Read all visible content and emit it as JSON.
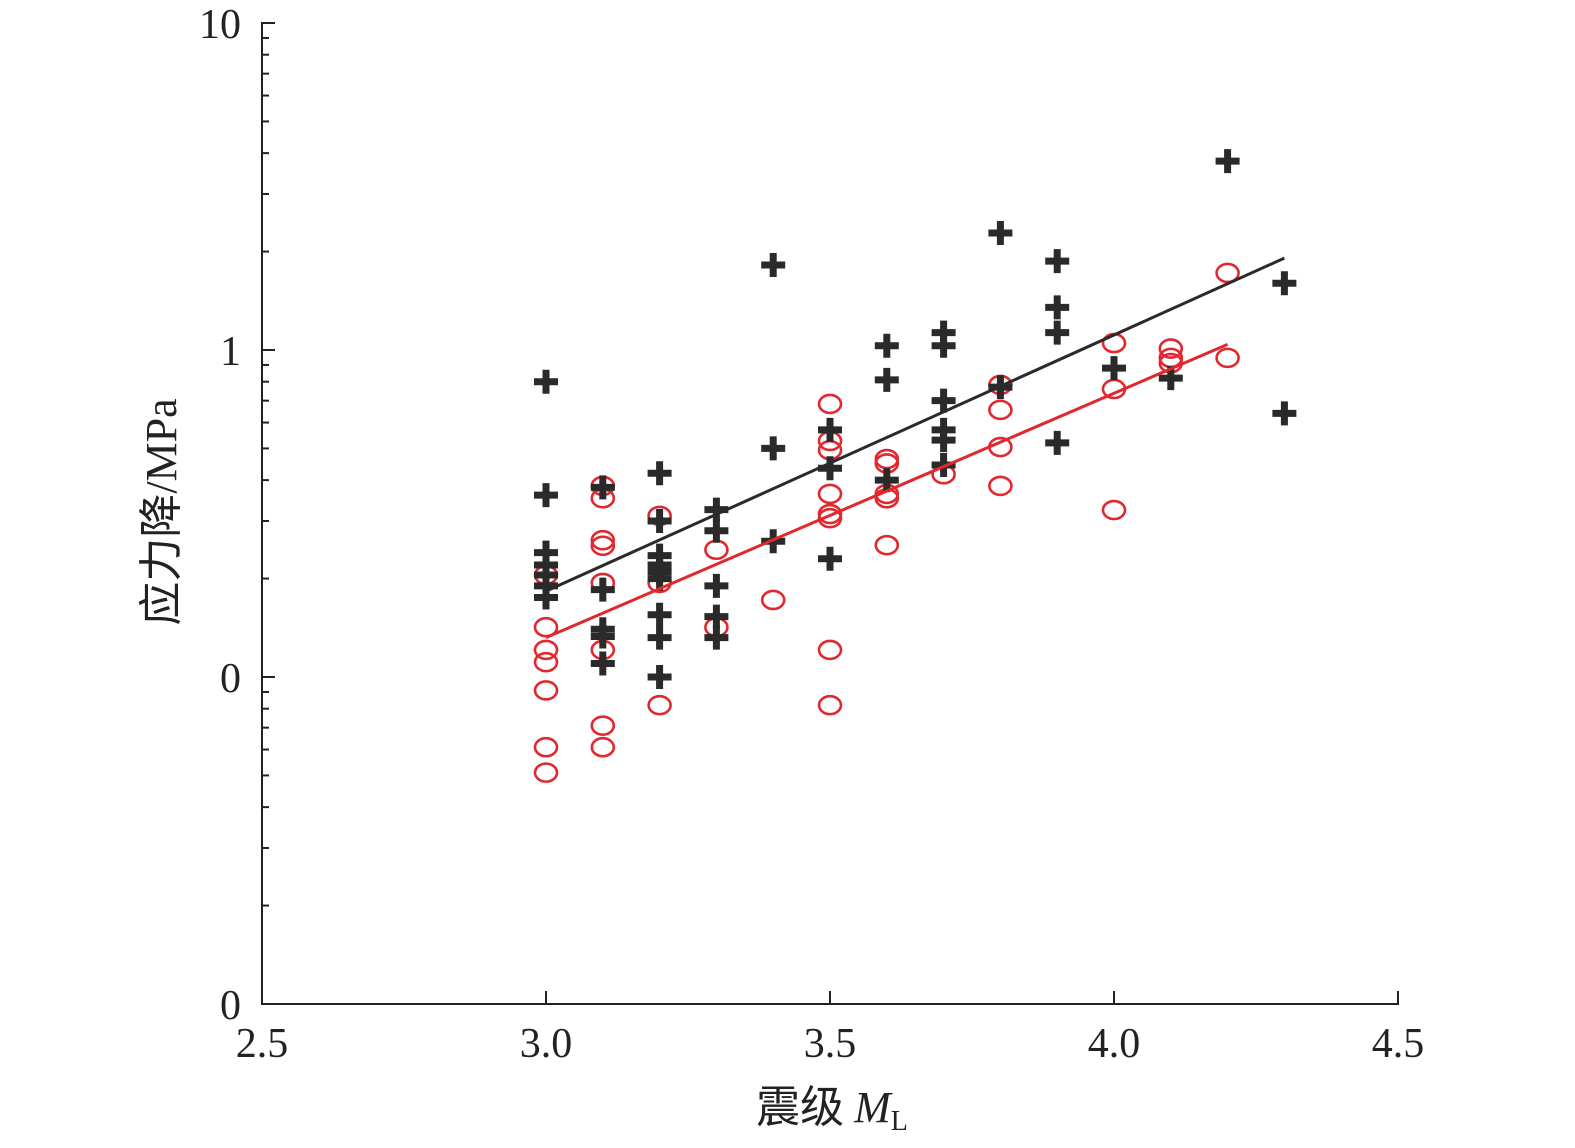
{
  "chart_data": {
    "type": "scatter",
    "title": "",
    "xlabel": {
      "text": "震级",
      "symbol": "M",
      "subscript": "L"
    },
    "ylabel": "应力降/MPa",
    "xlim": [
      2.5,
      4.5
    ],
    "ylim": [
      0.01,
      10
    ],
    "yscale": "log",
    "grid": false,
    "legend": "none",
    "xticks": [
      {
        "value": 2.5,
        "label": "2.5"
      },
      {
        "value": 3.0,
        "label": "3.0"
      },
      {
        "value": 3.5,
        "label": "3.5"
      },
      {
        "value": 4.0,
        "label": "4.0"
      },
      {
        "value": 4.5,
        "label": "4.5"
      }
    ],
    "yticks": [
      {
        "value": 10,
        "label": "10"
      },
      {
        "value": 1,
        "label": "1"
      },
      {
        "value": 0.1,
        "label": "0"
      },
      {
        "value": 0.01,
        "label": "0"
      }
    ],
    "series": [
      {
        "marker": "circle",
        "color": "#e0282e",
        "points": [
          [
            3.0,
            0.205
          ],
          [
            3.0,
            0.142
          ],
          [
            3.0,
            0.121
          ],
          [
            3.0,
            0.111
          ],
          [
            3.0,
            0.091
          ],
          [
            3.0,
            0.061
          ],
          [
            3.0,
            0.051
          ],
          [
            3.1,
            0.384
          ],
          [
            3.1,
            0.352
          ],
          [
            3.1,
            0.262
          ],
          [
            3.1,
            0.252
          ],
          [
            3.1,
            0.194
          ],
          [
            3.1,
            0.121
          ],
          [
            3.1,
            0.071
          ],
          [
            3.1,
            0.061
          ],
          [
            3.2,
            0.311
          ],
          [
            3.2,
            0.194
          ],
          [
            3.2,
            0.082
          ],
          [
            3.3,
            0.245
          ],
          [
            3.3,
            0.142
          ],
          [
            3.4,
            0.172
          ],
          [
            3.5,
            0.684
          ],
          [
            3.5,
            0.527
          ],
          [
            3.5,
            0.494
          ],
          [
            3.5,
            0.363
          ],
          [
            3.5,
            0.315
          ],
          [
            3.5,
            0.306
          ],
          [
            3.5,
            0.121
          ],
          [
            3.5,
            0.082
          ],
          [
            3.6,
            0.464
          ],
          [
            3.6,
            0.45
          ],
          [
            3.6,
            0.363
          ],
          [
            3.6,
            0.352
          ],
          [
            3.6,
            0.253
          ],
          [
            3.7,
            0.417
          ],
          [
            3.8,
            0.782
          ],
          [
            3.8,
            0.656
          ],
          [
            3.8,
            0.505
          ],
          [
            3.8,
            0.384
          ],
          [
            4.0,
            1.05
          ],
          [
            4.0,
            0.76
          ],
          [
            4.0,
            0.324
          ],
          [
            4.1,
            1.01
          ],
          [
            4.1,
            0.946
          ],
          [
            4.1,
            0.912
          ],
          [
            4.2,
            1.72
          ],
          [
            4.2,
            0.946
          ]
        ]
      },
      {
        "marker": "plus",
        "color": "#2a2a2a",
        "points": [
          [
            3.0,
            0.8
          ],
          [
            3.0,
            0.36
          ],
          [
            3.0,
            0.24
          ],
          [
            3.0,
            0.22
          ],
          [
            3.0,
            0.205
          ],
          [
            3.0,
            0.19
          ],
          [
            3.0,
            0.175
          ],
          [
            3.1,
            0.38
          ],
          [
            3.1,
            0.185
          ],
          [
            3.1,
            0.14
          ],
          [
            3.1,
            0.133
          ],
          [
            3.1,
            0.11
          ],
          [
            3.2,
            0.42
          ],
          [
            3.2,
            0.3
          ],
          [
            3.2,
            0.235
          ],
          [
            3.2,
            0.22
          ],
          [
            3.2,
            0.21
          ],
          [
            3.2,
            0.2
          ],
          [
            3.2,
            0.155
          ],
          [
            3.2,
            0.132
          ],
          [
            3.2,
            0.1
          ],
          [
            3.3,
            0.325
          ],
          [
            3.3,
            0.28
          ],
          [
            3.3,
            0.19
          ],
          [
            3.3,
            0.153
          ],
          [
            3.3,
            0.132
          ],
          [
            3.4,
            1.82
          ],
          [
            3.4,
            0.5
          ],
          [
            3.4,
            0.26
          ],
          [
            3.5,
            0.57
          ],
          [
            3.5,
            0.435
          ],
          [
            3.5,
            0.23
          ],
          [
            3.6,
            1.03
          ],
          [
            3.6,
            0.81
          ],
          [
            3.6,
            0.4
          ],
          [
            3.7,
            1.13
          ],
          [
            3.7,
            1.03
          ],
          [
            3.7,
            0.7
          ],
          [
            3.7,
            0.57
          ],
          [
            3.7,
            0.53
          ],
          [
            3.7,
            0.445
          ],
          [
            3.8,
            2.28
          ],
          [
            3.8,
            0.77
          ],
          [
            3.9,
            1.87
          ],
          [
            3.9,
            1.35
          ],
          [
            3.9,
            1.13
          ],
          [
            3.9,
            0.52
          ],
          [
            4.0,
            0.88
          ],
          [
            4.1,
            0.82
          ],
          [
            4.2,
            3.78
          ],
          [
            4.3,
            1.6
          ],
          [
            4.3,
            0.64
          ]
        ]
      }
    ],
    "fit_lines": [
      {
        "color": "#2a2a2a",
        "x": [
          3.0,
          4.3
        ],
        "y": [
          0.183,
          1.91
        ]
      },
      {
        "color": "#e0282e",
        "x": [
          3.0,
          4.2
        ],
        "y": [
          0.132,
          1.04
        ]
      }
    ]
  }
}
